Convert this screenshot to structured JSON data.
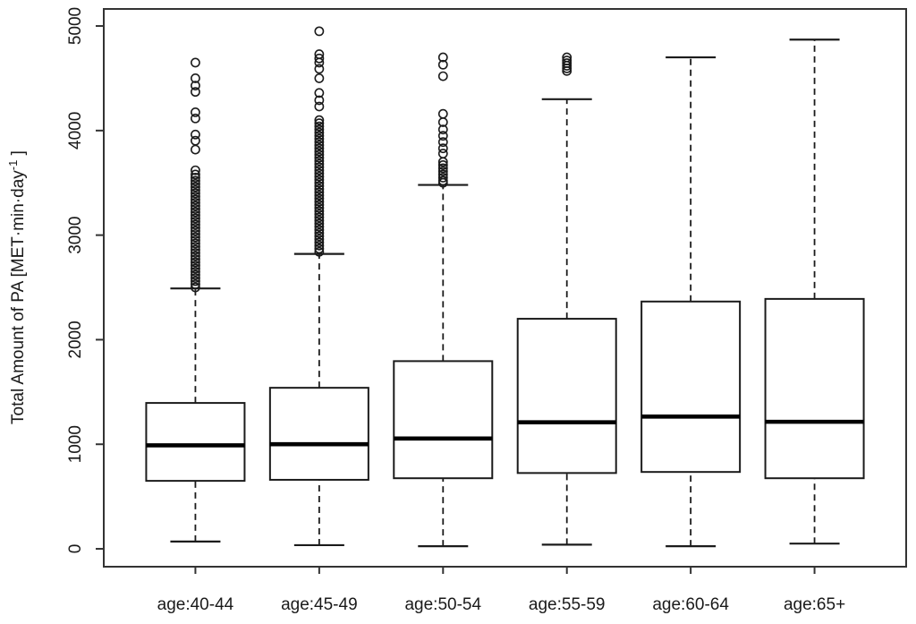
{
  "chart_data": {
    "type": "boxplot",
    "title": "",
    "xlabel": "",
    "ylabel": {
      "prefix": "Total Amount of PA [MET·min·day",
      "superscript": "-1",
      "suffix": " ]"
    },
    "y_ticks": [
      0,
      1000,
      2000,
      3000,
      4000,
      5000
    ],
    "ylim": [
      -171,
      5163
    ],
    "grid": false,
    "legend": null,
    "categories": [
      "age:40-44",
      "age:45-49",
      "age:50-54",
      "age:55-59",
      "age:60-64",
      "age:65+"
    ],
    "groups": [
      {
        "label": "age:40-44",
        "lower_whisker": 70,
        "q1": 650,
        "median": 990,
        "q3": 1395,
        "upper_whisker": 2490,
        "outliers": [
          4650,
          4500,
          4430,
          4370,
          4175,
          4116,
          3962,
          3903,
          3818,
          3620,
          2500,
          2530,
          2560,
          2590,
          2620,
          2650,
          2680,
          2710,
          2740,
          2770,
          2800,
          2830,
          2860,
          2890,
          2920,
          2950,
          2980,
          3010,
          3040,
          3070,
          3100,
          3130,
          3160,
          3190,
          3220,
          3250,
          3280,
          3310,
          3340,
          3370,
          3400,
          3430,
          3460,
          3490,
          3520,
          3550,
          3580
        ]
      },
      {
        "label": "age:45-49",
        "lower_whisker": 35,
        "q1": 660,
        "median": 1000,
        "q3": 1540,
        "upper_whisker": 2820,
        "outliers": [
          4950,
          4730,
          4690,
          4650,
          4590,
          4500,
          4360,
          4290,
          4230,
          2840,
          2870,
          2900,
          2930,
          2960,
          2990,
          3020,
          3050,
          3080,
          3110,
          3140,
          3170,
          3200,
          3230,
          3260,
          3290,
          3320,
          3350,
          3380,
          3410,
          3440,
          3470,
          3500,
          3530,
          3560,
          3590,
          3620,
          3650,
          3680,
          3710,
          3740,
          3770,
          3800,
          3830,
          3860,
          3890,
          3920,
          3950,
          3980,
          4010,
          4040,
          4070,
          4100
        ]
      },
      {
        "label": "age:50-54",
        "lower_whisker": 25,
        "q1": 675,
        "median": 1055,
        "q3": 1795,
        "upper_whisker": 3480,
        "outliers": [
          4700,
          4630,
          4520,
          4160,
          4080,
          4010,
          3950,
          3890,
          3830,
          3780,
          3700,
          3670,
          3640,
          3610,
          3580,
          3550,
          3520,
          3500
        ]
      },
      {
        "label": "age:55-59",
        "lower_whisker": 40,
        "q1": 725,
        "median": 1210,
        "q3": 2200,
        "upper_whisker": 4300,
        "outliers": [
          4700,
          4670,
          4645,
          4620,
          4595,
          4570
        ]
      },
      {
        "label": "age:60-64",
        "lower_whisker": 25,
        "q1": 735,
        "median": 1265,
        "q3": 2365,
        "upper_whisker": 4700,
        "outliers": []
      },
      {
        "label": "age:65+",
        "lower_whisker": 50,
        "q1": 675,
        "median": 1215,
        "q3": 2390,
        "upper_whisker": 4870,
        "outliers": []
      }
    ],
    "colors": {
      "box_stroke": "#1b1b1b",
      "median": "#000000",
      "whisker": "#1b1b1b",
      "frame": "#333333",
      "text": "#1a1a1a",
      "background": "#ffffff"
    }
  }
}
